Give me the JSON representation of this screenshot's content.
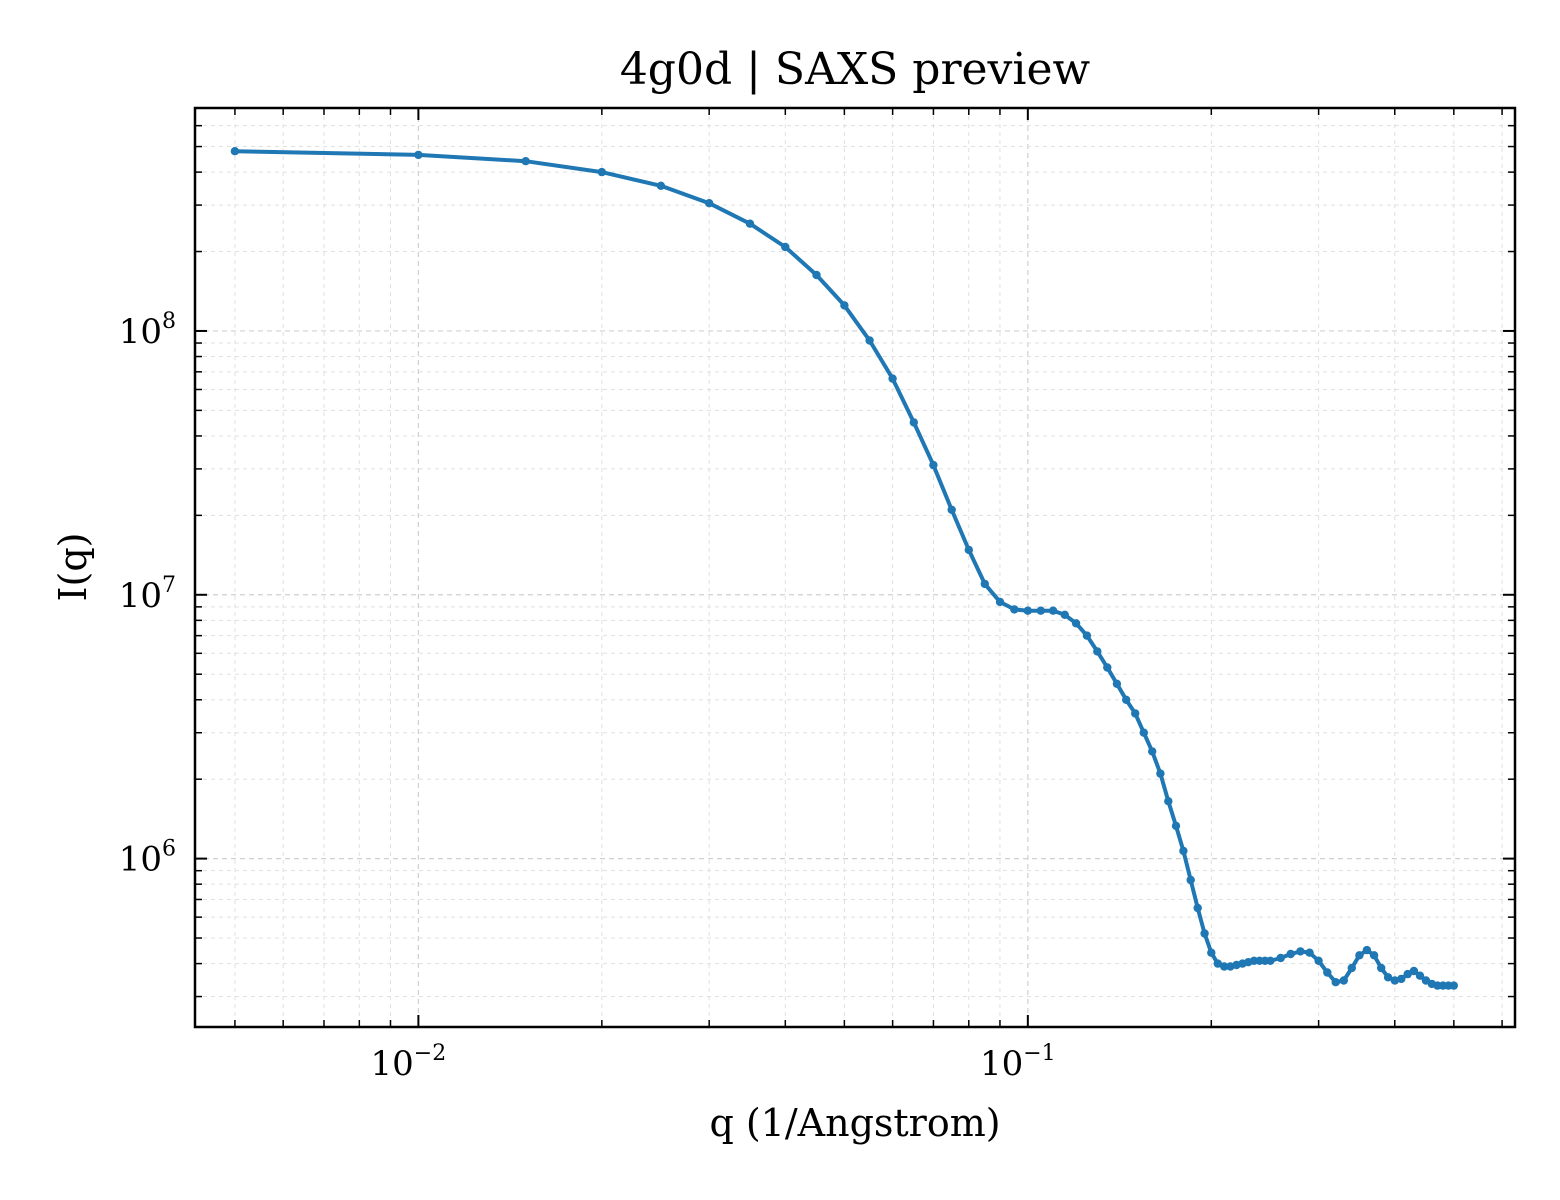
{
  "chart_data": {
    "type": "line",
    "title": "4g0d | SAXS preview",
    "xlabel": "q (1/Angstrom)",
    "ylabel": "I(q)",
    "xscale": "log",
    "yscale": "log",
    "xlim": [
      0.0043,
      0.63
    ],
    "ylim": [
      230000,
      700000000
    ],
    "grid": true,
    "legend": "none",
    "x_major_ticks": [
      {
        "value": 0.01,
        "base": "10",
        "exp": "−2"
      },
      {
        "value": 0.1,
        "base": "10",
        "exp": "−1"
      }
    ],
    "y_major_ticks": [
      {
        "value": 1000000,
        "base": "10",
        "exp": "6"
      },
      {
        "value": 10000000,
        "base": "10",
        "exp": "7"
      },
      {
        "value": 100000000,
        "base": "10",
        "exp": "8"
      }
    ],
    "series": [
      {
        "color": "#1f77b4",
        "x": [
          0.005,
          0.01,
          0.015,
          0.02,
          0.025,
          0.03,
          0.035,
          0.04,
          0.045,
          0.05,
          0.055,
          0.06,
          0.065,
          0.07,
          0.075,
          0.08,
          0.085,
          0.09,
          0.095,
          0.1,
          0.105,
          0.11,
          0.115,
          0.12,
          0.125,
          0.13,
          0.135,
          0.14,
          0.145,
          0.15,
          0.155,
          0.16,
          0.165,
          0.17,
          0.175,
          0.18,
          0.185,
          0.19,
          0.195,
          0.2,
          0.205,
          0.21,
          0.215,
          0.22,
          0.225,
          0.23,
          0.235,
          0.24,
          0.245,
          0.25,
          0.26,
          0.27,
          0.28,
          0.29,
          0.3,
          0.31,
          0.32,
          0.33,
          0.34,
          0.35,
          0.36,
          0.37,
          0.38,
          0.39,
          0.4,
          0.41,
          0.42,
          0.43,
          0.44,
          0.45,
          0.46,
          0.47,
          0.48,
          0.49,
          0.5
        ],
        "y": [
          480000000,
          465000000,
          440000000,
          400000000,
          355000000,
          305000000,
          255000000,
          208000000,
          163000000,
          125000000,
          92000000,
          66000000,
          45000000,
          31000000,
          21000000,
          14800000,
          11000000,
          9400000,
          8800000,
          8700000,
          8700000,
          8700000,
          8400000,
          7800000,
          7000000,
          6100000,
          5300000,
          4600000,
          4000000,
          3550000,
          3000000,
          2550000,
          2100000,
          1650000,
          1330000,
          1070000,
          830000,
          650000,
          520000,
          440000,
          400000,
          390000,
          390000,
          395000,
          400000,
          405000,
          410000,
          410000,
          410000,
          410000,
          420000,
          435000,
          445000,
          440000,
          410000,
          370000,
          340000,
          345000,
          385000,
          430000,
          450000,
          430000,
          385000,
          355000,
          345000,
          350000,
          365000,
          375000,
          360000,
          345000,
          335000,
          330000,
          330000,
          330000,
          330000
        ]
      }
    ]
  }
}
